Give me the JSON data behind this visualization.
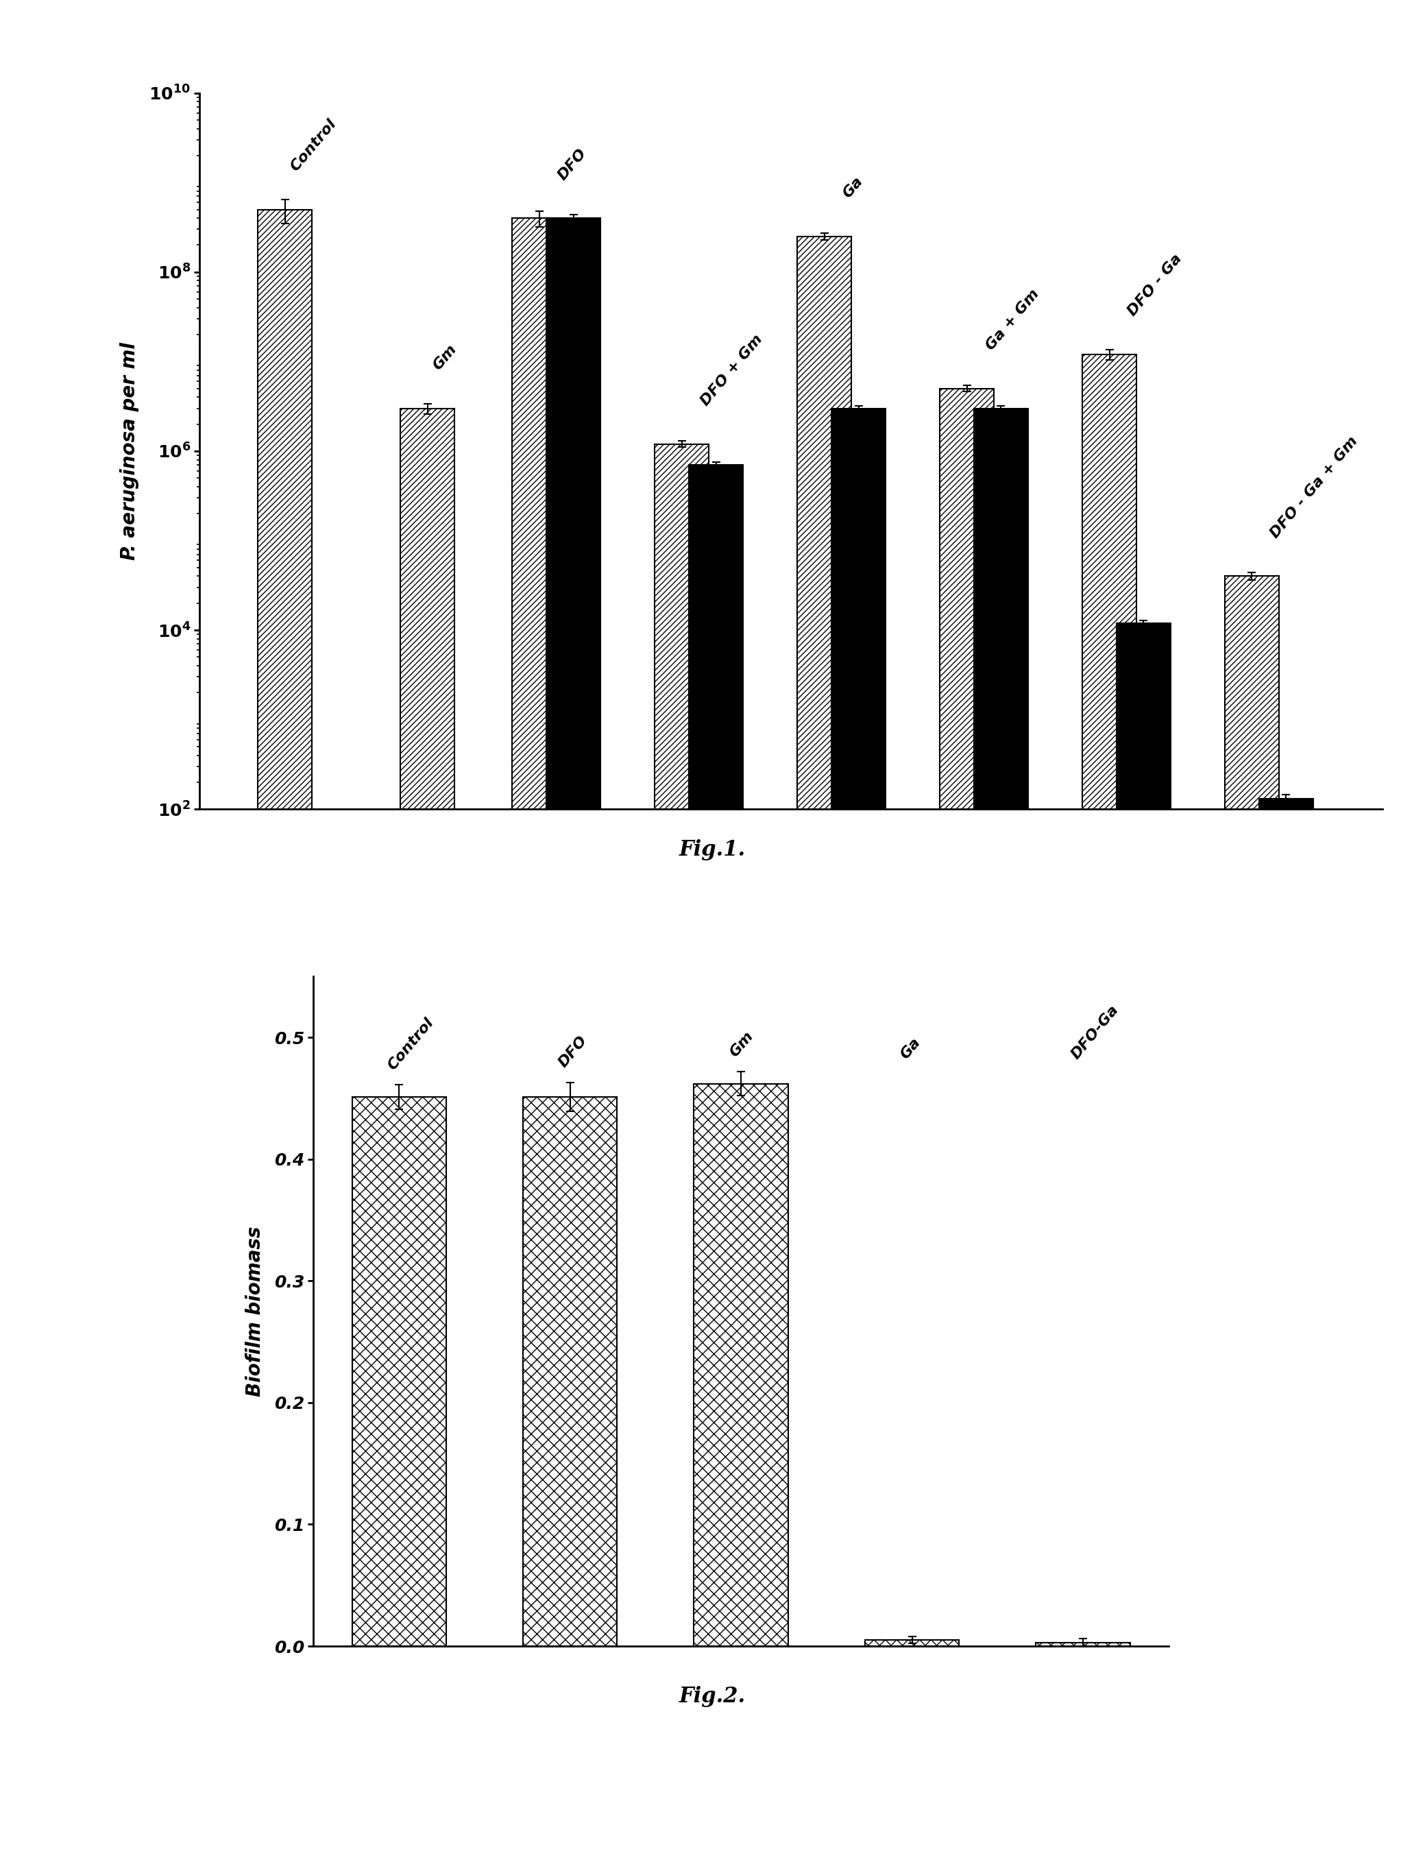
{
  "fig1": {
    "ylabel": "P. aeruginosa per ml",
    "groups": [
      {
        "label": "Control",
        "hatched": 500000000.0,
        "hatched_err": 150000000.0,
        "solid": null,
        "solid_err": null
      },
      {
        "label": "Gm",
        "hatched": 3000000.0,
        "hatched_err": 400000.0,
        "solid": null,
        "solid_err": null
      },
      {
        "label": "DFO",
        "hatched": 400000000.0,
        "hatched_err": 80000000.0,
        "solid": 400000000.0,
        "solid_err": 40000000.0
      },
      {
        "label": "DFO + Gm",
        "hatched": 1200000.0,
        "hatched_err": 100000.0,
        "solid": 700000.0,
        "solid_err": 50000.0
      },
      {
        "label": "Ga",
        "hatched": 250000000.0,
        "hatched_err": 20000000.0,
        "solid": 3000000.0,
        "solid_err": 200000.0
      },
      {
        "label": "Ga + Gm",
        "hatched": 5000000.0,
        "hatched_err": 400000.0,
        "solid": 3000000.0,
        "solid_err": 200000.0
      },
      {
        "label": "DFO - Ga",
        "hatched": 12000000.0,
        "hatched_err": 1500000.0,
        "solid": 12000.0,
        "solid_err": 800.0
      },
      {
        "label": "DFO - Ga + Gm",
        "hatched": 40000.0,
        "hatched_err": 4000.0,
        "solid": 130.0,
        "solid_err": 15.0
      }
    ],
    "fig_caption": "Fig.1.",
    "hatch_pattern": "////",
    "bar_width": 0.38,
    "bar_gap": 0.05
  },
  "fig2": {
    "ylabel": "Biofilm biomass",
    "ylim": [
      0,
      0.55
    ],
    "yticks": [
      0.0,
      0.1,
      0.2,
      0.3,
      0.4,
      0.5
    ],
    "groups": [
      {
        "label": "Control",
        "value": 0.451,
        "err": 0.01
      },
      {
        "label": "DFO",
        "value": 0.451,
        "err": 0.012
      },
      {
        "label": "Gm",
        "value": 0.462,
        "err": 0.01
      },
      {
        "label": "Ga",
        "value": 0.005,
        "err": 0.003
      },
      {
        "label": "DFO-Ga",
        "value": 0.003,
        "err": 0.003
      }
    ],
    "fig_caption": "Fig.2.",
    "hatch_pattern": "xx",
    "bar_width": 0.55
  }
}
